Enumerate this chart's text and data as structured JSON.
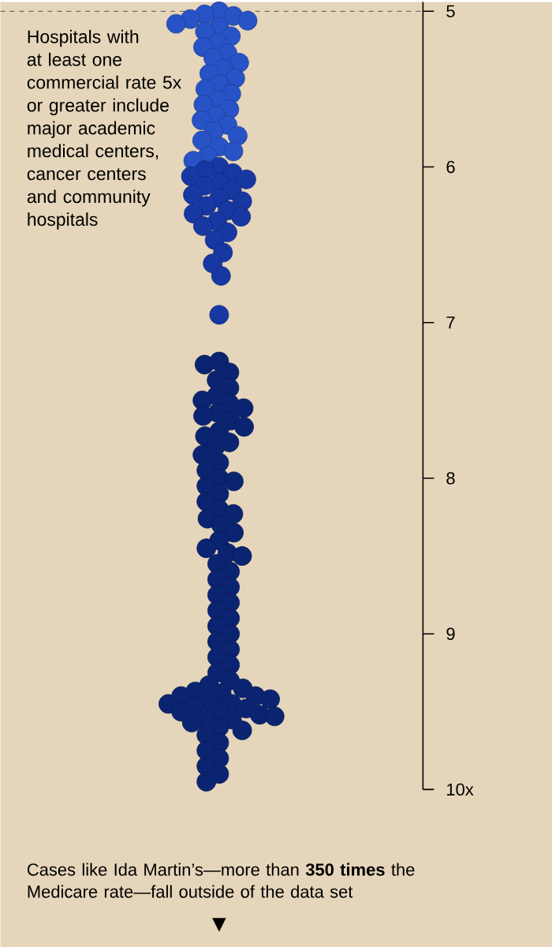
{
  "chart_data": {
    "type": "scatter",
    "categories": [
      null
    ],
    "marker": "circle",
    "tick_labels": "y",
    "ylim": [
      10,
      4.94
    ],
    "yticks": [
      5,
      6,
      7,
      8,
      9,
      {
        "value": 10,
        "label": "10x"
      }
    ],
    "ref_lines": [
      {
        "axis": "y",
        "value": 5,
        "color": "#555555",
        "line_style": "dashed"
      }
    ],
    "series": [
      {
        "color": "#2753c6",
        "x": [
          null,
          null,
          null,
          null,
          null,
          null,
          null,
          null,
          null,
          null,
          null,
          null,
          null,
          null,
          null,
          null,
          null,
          null,
          null,
          null,
          null,
          null,
          null,
          null,
          null,
          null,
          null,
          null,
          null,
          null,
          null,
          null,
          null
        ],
        "values": [
          5.0,
          5.02,
          5.03,
          5.05,
          5.06,
          5.08,
          5.1,
          5.13,
          5.16,
          5.2,
          5.23,
          5.27,
          5.3,
          5.33,
          5.37,
          5.4,
          5.43,
          5.47,
          5.5,
          5.53,
          5.57,
          5.6,
          5.63,
          5.67,
          5.7,
          5.73,
          5.77,
          5.8,
          5.83,
          5.87,
          5.9,
          5.93,
          5.96
        ]
      },
      {
        "color": "#1738a3",
        "x": [
          null,
          null,
          null,
          null,
          null,
          null,
          null,
          null,
          null,
          null,
          null,
          null,
          null,
          null,
          null,
          null,
          null,
          null,
          null,
          null,
          null,
          null,
          null
        ],
        "values": [
          6.0,
          6.02,
          6.04,
          6.06,
          6.08,
          6.1,
          6.12,
          6.15,
          6.18,
          6.2,
          6.22,
          6.25,
          6.28,
          6.3,
          6.32,
          6.35,
          6.38,
          6.42,
          6.47,
          6.55,
          6.62,
          6.7,
          6.95
        ]
      },
      {
        "color": "#0b2472",
        "x": [
          null,
          null,
          null,
          null,
          null,
          null,
          null,
          null,
          null,
          null,
          null,
          null,
          null,
          null,
          null,
          null,
          null,
          null,
          null,
          null,
          null,
          null,
          null,
          null,
          null,
          null,
          null,
          null,
          null,
          null,
          null,
          null,
          null,
          null,
          null,
          null,
          null,
          null,
          null,
          null,
          null,
          null,
          null,
          null,
          null,
          null,
          null,
          null,
          null,
          null,
          null,
          null,
          null,
          null,
          null,
          null,
          null,
          null,
          null,
          null,
          null,
          null,
          null,
          null,
          null,
          null,
          null,
          null,
          null,
          null,
          null,
          null,
          null,
          null,
          null,
          null,
          null,
          null
        ],
        "values": [
          7.25,
          7.27,
          7.32,
          7.37,
          7.42,
          7.47,
          7.5,
          7.52,
          7.55,
          7.58,
          7.6,
          7.63,
          7.67,
          7.7,
          7.73,
          7.77,
          7.8,
          7.85,
          7.9,
          7.95,
          8.0,
          8.02,
          8.05,
          8.1,
          8.15,
          8.2,
          8.23,
          8.26,
          8.3,
          8.35,
          8.4,
          8.45,
          8.48,
          8.5,
          8.55,
          8.6,
          8.65,
          8.7,
          8.75,
          8.8,
          8.85,
          8.9,
          8.95,
          9.0,
          9.05,
          9.1,
          9.15,
          9.2,
          9.25,
          9.3,
          9.33,
          9.35,
          9.37,
          9.38,
          9.4,
          9.4,
          9.42,
          9.43,
          9.45,
          9.45,
          9.47,
          9.48,
          9.5,
          9.5,
          9.52,
          9.53,
          9.55,
          9.55,
          9.57,
          9.6,
          9.62,
          9.65,
          9.7,
          9.75,
          9.8,
          9.85,
          9.9,
          9.95
        ]
      }
    ],
    "annotations": [
      "Hospitals with at least one commercial rate 5x or greater include major academic medical centers, cancer centers and community hospitals",
      "Cases like Ida Martin’s—more than **350 times** the Medicare rate—fall outside of the data set",
      "▼"
    ]
  }
}
